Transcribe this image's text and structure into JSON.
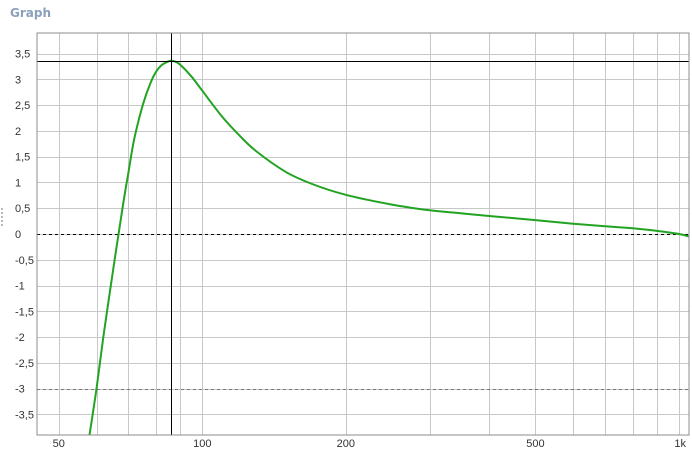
{
  "panel": {
    "title": "Graph"
  },
  "chart_data": {
    "type": "line",
    "title": "",
    "xlabel": "",
    "ylabel": "",
    "x_scale": "log",
    "xlim": [
      45,
      1050
    ],
    "ylim": [
      -3.9,
      3.9
    ],
    "grid": true,
    "x_ticks": [
      {
        "value": 50,
        "label": "50"
      },
      {
        "value": 100,
        "label": "100"
      },
      {
        "value": 200,
        "label": "200"
      },
      {
        "value": 500,
        "label": "500"
      },
      {
        "value": 1000,
        "label": "1k"
      }
    ],
    "x_minor": [
      60,
      70,
      80,
      90,
      300,
      400,
      600,
      700,
      800,
      900
    ],
    "y_ticks": [
      {
        "value": 3.5,
        "label": "3,5"
      },
      {
        "value": 3,
        "label": "3"
      },
      {
        "value": 2.5,
        "label": "2,5"
      },
      {
        "value": 2,
        "label": "2"
      },
      {
        "value": 1.5,
        "label": "1,5"
      },
      {
        "value": 1,
        "label": "1"
      },
      {
        "value": 0.5,
        "label": "0,5"
      },
      {
        "value": 0,
        "label": "0"
      },
      {
        "value": -0.5,
        "label": "-0,5"
      },
      {
        "value": -1,
        "label": "-1"
      },
      {
        "value": -1.5,
        "label": "-1,5"
      },
      {
        "value": -2,
        "label": "-2"
      },
      {
        "value": -2.5,
        "label": "-2,5"
      },
      {
        "value": -3,
        "label": "-3"
      },
      {
        "value": -3.5,
        "label": "-3,5"
      }
    ],
    "reference_lines": [
      {
        "axis": "y",
        "value": 0,
        "style": "dashed",
        "color": "#000000"
      },
      {
        "axis": "y",
        "value": -3,
        "style": "dashed",
        "color": "#777777"
      }
    ],
    "cursor": {
      "x": 86,
      "y": 3.36,
      "color": "#000000"
    },
    "series": [
      {
        "color": "#22a322",
        "x": [
          58,
          60,
          62,
          65,
          68,
          70,
          72,
          75,
          78,
          80,
          82,
          84,
          86,
          88,
          90,
          95,
          100,
          110,
          120,
          130,
          150,
          170,
          200,
          250,
          300,
          350,
          400,
          500,
          600,
          700,
          800,
          900,
          1000,
          1050
        ],
        "y": [
          -3.9,
          -3.0,
          -2.0,
          -0.7,
          0.5,
          1.2,
          1.85,
          2.5,
          2.95,
          3.15,
          3.27,
          3.33,
          3.36,
          3.34,
          3.28,
          3.05,
          2.78,
          2.28,
          1.9,
          1.6,
          1.2,
          0.97,
          0.76,
          0.57,
          0.46,
          0.4,
          0.35,
          0.27,
          0.2,
          0.15,
          0.11,
          0.06,
          0.0,
          -0.05
        ]
      }
    ]
  }
}
